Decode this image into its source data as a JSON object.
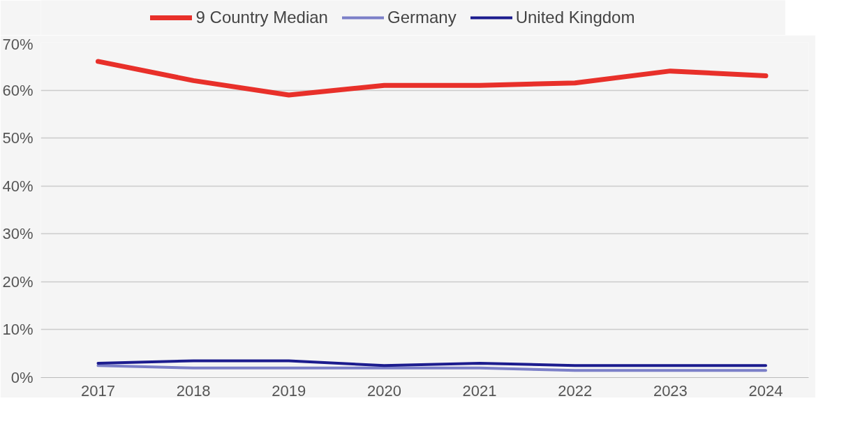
{
  "chart_data": {
    "type": "line",
    "categories": [
      "2017",
      "2018",
      "2019",
      "2020",
      "2021",
      "2022",
      "2023",
      "2024"
    ],
    "series": [
      {
        "name": "9 Country Median",
        "color": "#e8302a",
        "values": [
          66,
          62,
          59,
          61,
          61,
          61.5,
          64,
          63
        ]
      },
      {
        "name": "Germany",
        "color": "#7b7fc8",
        "values": [
          2.5,
          2,
          2,
          2,
          2,
          1.5,
          1.5,
          1.5
        ]
      },
      {
        "name": "United Kingdom",
        "color": "#1c1c8e",
        "values": [
          3,
          3.5,
          3.5,
          2.5,
          3,
          2.5,
          2.5,
          2.5
        ]
      }
    ],
    "ylim": [
      0,
      70
    ],
    "yticks": [
      {
        "value": 0,
        "label": "0%"
      },
      {
        "value": 10,
        "label": "10%"
      },
      {
        "value": 20,
        "label": "20%"
      },
      {
        "value": 30,
        "label": "30%"
      },
      {
        "value": 40,
        "label": "40%"
      },
      {
        "value": 50,
        "label": "50%"
      },
      {
        "value": 60,
        "label": "60%"
      },
      {
        "value": 70,
        "label": "70%"
      }
    ],
    "grid": "y",
    "legend": "top",
    "line_style": "solid",
    "marker": "none"
  }
}
